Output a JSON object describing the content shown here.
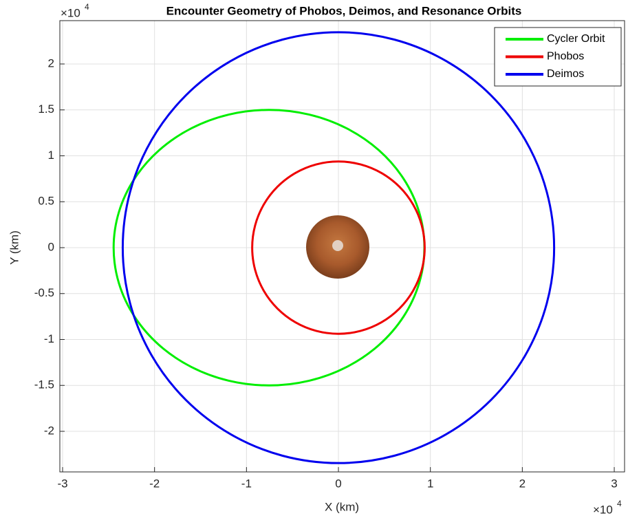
{
  "chart_data": {
    "type": "line",
    "title": "Encounter Geometry of Phobos, Deimos, and Resonance Orbits",
    "xlabel": "X (km)",
    "ylabel": "Y (km)",
    "x_exponent": {
      "base": "×10",
      "power": "4"
    },
    "y_exponent": {
      "base": "×10",
      "power": "4"
    },
    "xlim": [
      -30300,
      31120
    ],
    "ylim": [
      -24420,
      24720
    ],
    "xticks": [
      {
        "value": -30000,
        "label": "-3"
      },
      {
        "value": -20000,
        "label": "-2"
      },
      {
        "value": -10000,
        "label": "-1"
      },
      0,
      {
        "value": 10000,
        "label": "1"
      },
      {
        "value": 20000,
        "label": "2"
      },
      {
        "value": 30000,
        "label": "3"
      }
    ],
    "yticks": [
      {
        "value": -20000,
        "label": "-2"
      },
      {
        "value": -15000,
        "label": "-1.5"
      },
      {
        "value": -10000,
        "label": "-1"
      },
      {
        "value": -5000,
        "label": "-0.5"
      },
      0,
      {
        "value": 5000,
        "label": "0.5"
      },
      {
        "value": 10000,
        "label": "1"
      },
      {
        "value": 15000,
        "label": "1.5"
      },
      {
        "value": 20000,
        "label": "2"
      }
    ],
    "grid": true,
    "legend": "upper-right",
    "series": [
      {
        "name": "Cycler Orbit",
        "color": "#00ee00",
        "x": [
          9350,
          8774,
          7085,
          4400,
          900,
          -3176,
          -7550,
          -11924,
          -16000,
          -19500,
          -22185,
          -23874,
          -24450,
          -23874,
          -22185,
          -19500,
          -16000,
          -11924,
          -7550,
          -3176,
          900,
          4400,
          7085,
          8774,
          9350
        ],
        "values": [
          0,
          3882,
          7500,
          10607,
          12990,
          14489,
          15000,
          14489,
          12990,
          10607,
          7500,
          3882,
          0,
          -3882,
          -7500,
          -10607,
          -12990,
          -14489,
          -15000,
          -14489,
          -12990,
          -10607,
          -7500,
          -3882,
          0
        ]
      },
      {
        "name": "Phobos",
        "color": "#ee0000",
        "x": [
          9380,
          9060,
          8123,
          6633,
          4690,
          2428,
          0,
          -2428,
          -4690,
          -6633,
          -8123,
          -9060,
          -9380,
          -9060,
          -8123,
          -6633,
          -4690,
          -2428,
          0,
          2428,
          4690,
          6633,
          8123,
          9060,
          9380
        ],
        "values": [
          0,
          2428,
          4690,
          6633,
          8123,
          9060,
          9380,
          9060,
          8123,
          6633,
          4690,
          2428,
          0,
          -2428,
          -4690,
          -6633,
          -8123,
          -9060,
          -9380,
          -9060,
          -8123,
          -6633,
          -4690,
          -2428,
          0
        ]
      },
      {
        "name": "Deimos",
        "color": "#0000ee",
        "x": [
          23460,
          22660,
          20316,
          16589,
          11730,
          6071,
          0,
          -6071,
          -11730,
          -16589,
          -20316,
          -22660,
          -23460,
          -22660,
          -20316,
          -16589,
          -11730,
          -6071,
          0,
          6071,
          11730,
          16589,
          20316,
          22660,
          23460
        ],
        "values": [
          0,
          6071,
          11730,
          16589,
          20316,
          22660,
          23460,
          22660,
          20316,
          16589,
          11730,
          6071,
          0,
          -6071,
          -11730,
          -16589,
          -20316,
          -22660,
          -23460,
          -22660,
          -20316,
          -16589,
          -11730,
          -6071,
          0
        ]
      }
    ]
  }
}
